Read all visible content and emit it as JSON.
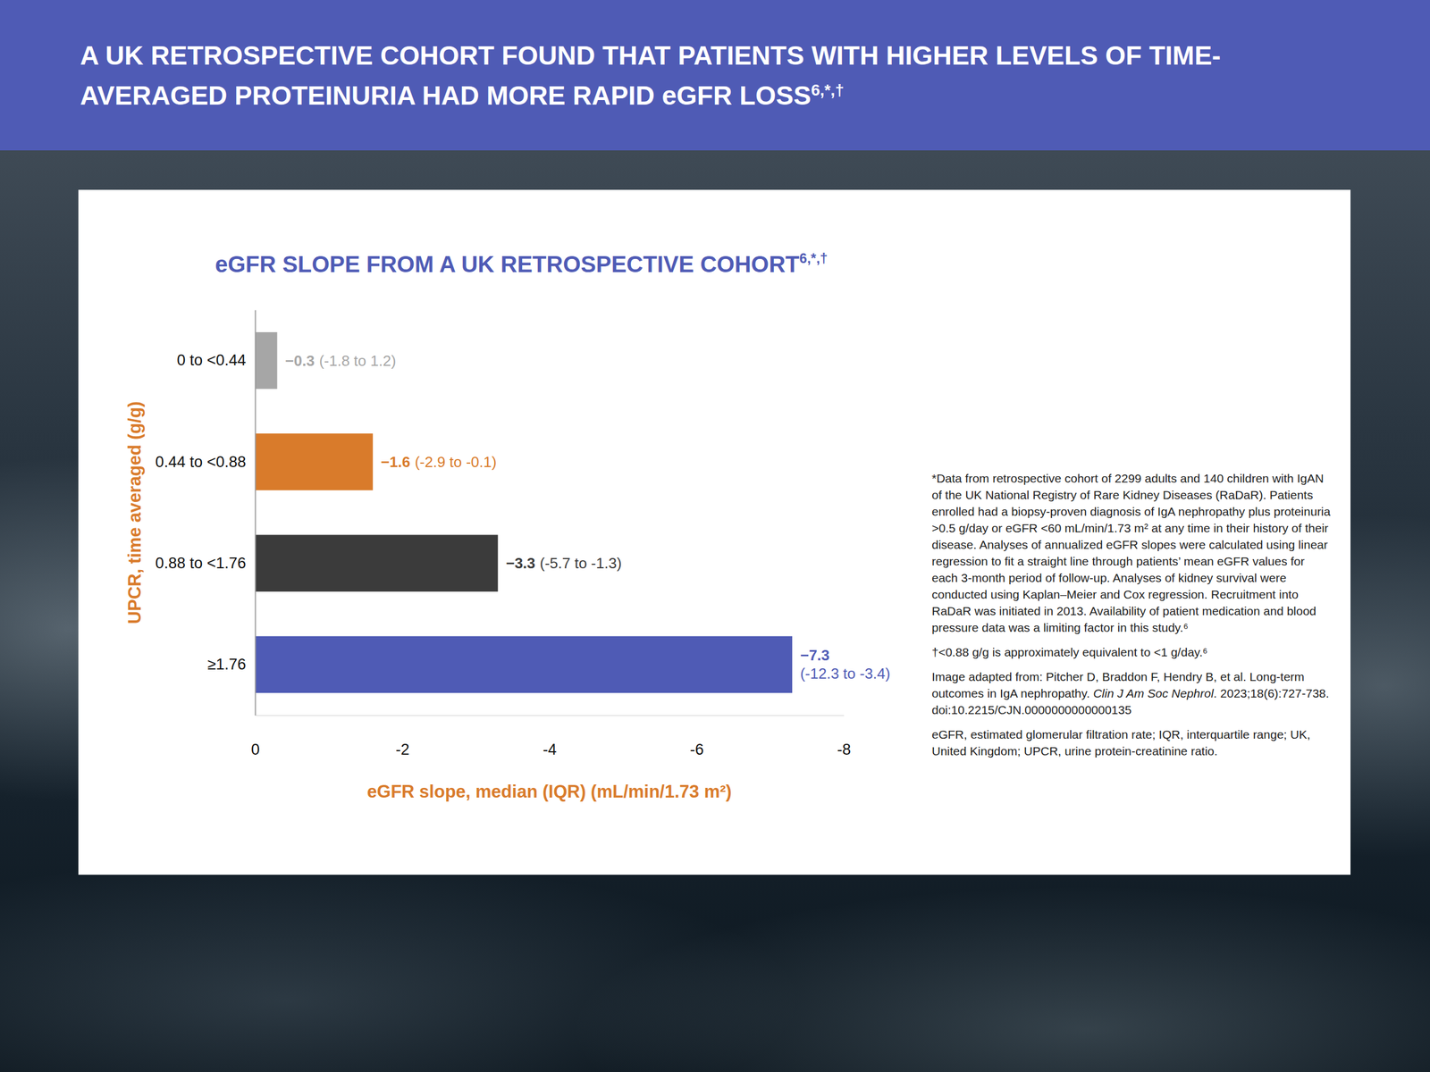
{
  "header": {
    "title": "A UK RETROSPECTIVE COHORT FOUND THAT PATIENTS WITH HIGHER LEVELS OF TIME-AVERAGED PROTEINURIA HAD MORE RAPID eGFR LOSS",
    "title_superscript": "6,*,†"
  },
  "chart_data": {
    "type": "bar",
    "orientation": "horizontal",
    "title": "eGFR SLOPE FROM A UK RETROSPECTIVE COHORT",
    "title_superscript": "6,*,†",
    "categories": [
      "0 to <0.44",
      "0.44 to <0.88",
      "0.88 to <1.76",
      "≥1.76"
    ],
    "values": [
      -0.3,
      -1.6,
      -3.3,
      -7.3
    ],
    "value_labels": [
      "−0.3",
      "−1.6",
      "−3.3",
      "−7.3"
    ],
    "iqr_labels": [
      "(-1.8 to 1.2)",
      "(-2.9 to -0.1)",
      "(-5.7 to -1.3)",
      "(-12.3 to -3.4)"
    ],
    "colors": [
      "#a6a6a6",
      "#d97b2b",
      "#3b3b3b",
      "#4f5bb5"
    ],
    "data_labels": true,
    "xlim": [
      0,
      -8
    ],
    "xticks": [
      0,
      -2,
      -4,
      -6,
      -8
    ],
    "x_label": "eGFR slope, median (IQR) (mL/min/1.73 m²)",
    "y_label": "UPCR, time averaged (g/g)",
    "grid": false
  },
  "notes": {
    "footnote_data": "*Data from retrospective cohort of 2299 adults and 140 children with IgAN of the UK National Registry of Rare Kidney Diseases (RaDaR). Patients enrolled had a biopsy-proven diagnosis of IgA nephropathy plus proteinuria >0.5 g/day or eGFR <60 mL/min/1.73 m² at any time in their history of their disease. Analyses of annualized eGFR slopes were calculated using linear regression to fit a straight line through patients’ mean eGFR values for each 3-month period of follow-up. Analyses of kidney survival were conducted using Kaplan–Meier and Cox regression. Recruitment into RaDaR was initiated in 2013. Availability of patient medication and blood pressure data was a limiting factor in this study.⁶",
    "footnote_conversion": "†<0.88 g/g is approximately equivalent to <1 g/day.⁶",
    "reference_prefix": "Image adapted from: Pitcher D, Braddon F, Hendry B, et al. Long-term outcomes in IgA nephropathy.",
    "reference_journal": "Clin J Am Soc Nephrol",
    "reference_suffix": ". 2023;18(6):727-738. doi:10.2215/CJN.0000000000000135",
    "abbreviations": "eGFR, estimated glomerular filtration rate; IQR, interquartile range; UK, United Kingdom; UPCR, urine protein-creatinine ratio."
  }
}
